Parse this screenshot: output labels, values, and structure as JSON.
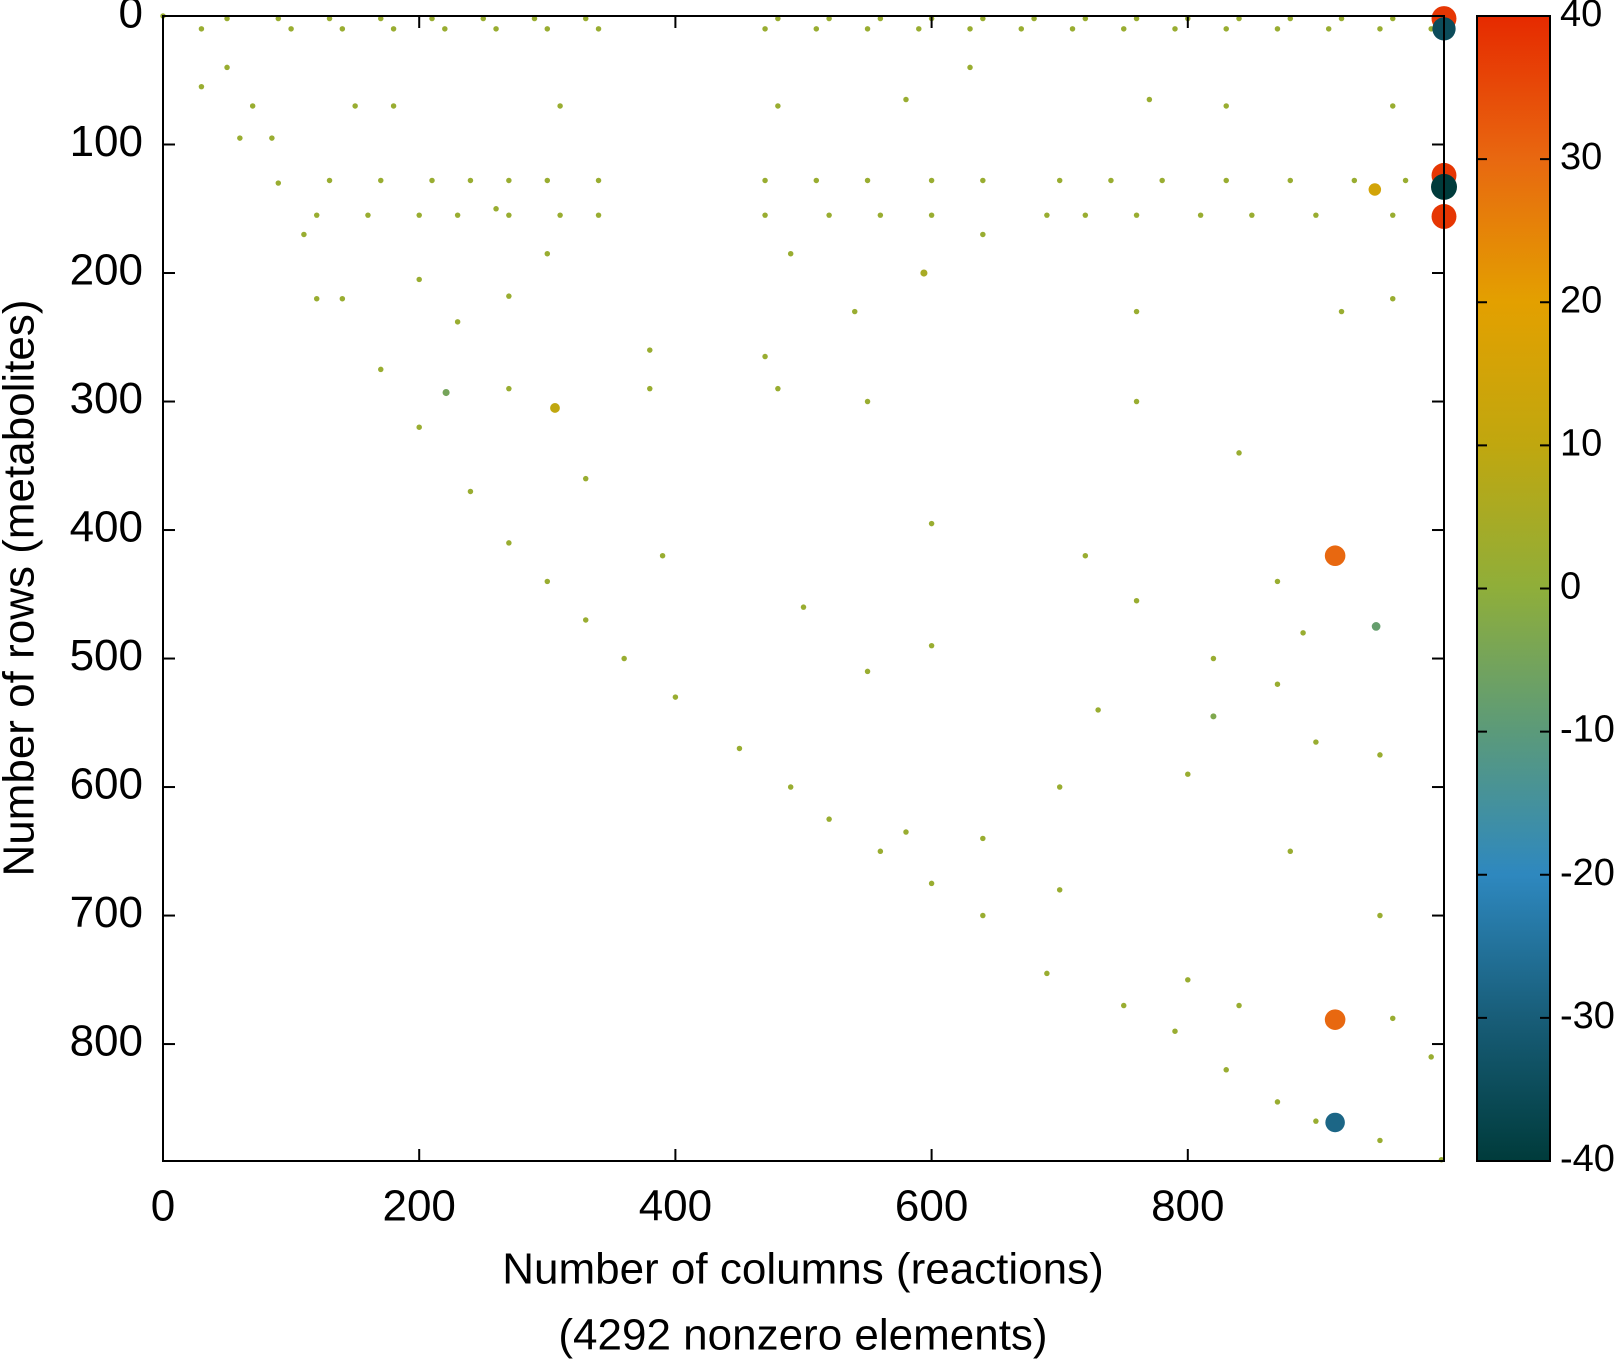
{
  "chart_data": {
    "type": "scatter",
    "xlabel": "Number of columns (reactions)",
    "subxlabel": "(4292 nonzero elements)",
    "ylabel": "Number of rows (metabolites)",
    "xlim": [
      0,
      1000
    ],
    "ylim": [
      891,
      0
    ],
    "xticks": [
      0,
      200,
      400,
      600,
      800
    ],
    "yticks": [
      0,
      100,
      200,
      300,
      400,
      500,
      600,
      700,
      800
    ],
    "clim": [
      -40,
      40
    ],
    "cticks": [
      -40,
      -30,
      -20,
      -10,
      0,
      10,
      20,
      30,
      40
    ],
    "colormap": [
      "#003b3b",
      "#185d78",
      "#2e88bf",
      "#5b9a7a",
      "#8fae3a",
      "#c0a70f",
      "#e3a000",
      "#e86810",
      "#e62a00"
    ],
    "x": [
      0,
      30,
      60,
      90,
      110,
      140,
      170,
      200,
      240,
      270,
      300,
      330,
      360,
      400,
      450,
      490,
      520,
      560,
      600,
      640,
      690,
      750,
      790,
      830,
      870,
      900,
      950,
      998,
      30,
      50,
      70,
      85,
      50,
      90,
      130,
      170,
      210,
      250,
      290,
      330,
      480,
      520,
      560,
      600,
      640,
      680,
      720,
      760,
      800,
      840,
      880,
      920,
      960,
      100,
      140,
      180,
      220,
      260,
      300,
      340,
      470,
      510,
      550,
      590,
      630,
      670,
      710,
      750,
      790,
      830,
      870,
      910,
      950,
      990,
      130,
      170,
      210,
      240,
      270,
      300,
      340,
      470,
      510,
      550,
      600,
      640,
      700,
      740,
      780,
      830,
      880,
      930,
      970,
      120,
      160,
      200,
      230,
      270,
      310,
      340,
      470,
      520,
      560,
      600,
      690,
      720,
      760,
      810,
      850,
      900,
      960,
      150,
      180,
      310,
      480,
      580,
      630,
      770,
      830,
      960,
      300,
      490,
      640,
      200,
      270,
      380,
      470,
      540,
      760,
      920,
      960,
      230,
      270,
      380,
      550,
      760,
      840,
      600,
      720,
      870,
      760,
      500,
      890,
      600,
      820,
      550,
      870,
      730,
      900,
      950,
      700,
      800,
      640,
      580,
      880,
      700,
      950,
      800,
      840,
      990,
      960,
      480,
      390,
      330,
      260,
      120,
      1000,
      1000,
      1000,
      1000,
      1000,
      915,
      915,
      915,
      946,
      947,
      221,
      306,
      594,
      820
    ],
    "y": [
      0,
      55,
      95,
      130,
      170,
      220,
      275,
      320,
      370,
      410,
      440,
      470,
      500,
      530,
      570,
      600,
      625,
      650,
      675,
      700,
      745,
      770,
      790,
      820,
      845,
      860,
      875,
      890,
      10,
      40,
      70,
      95,
      2,
      2,
      2,
      2,
      2,
      2,
      2,
      2,
      2,
      2,
      2,
      2,
      2,
      2,
      2,
      2,
      2,
      2,
      2,
      2,
      2,
      10,
      10,
      10,
      10,
      10,
      10,
      10,
      10,
      10,
      10,
      10,
      10,
      10,
      10,
      10,
      10,
      10,
      10,
      10,
      10,
      10,
      128,
      128,
      128,
      128,
      128,
      128,
      128,
      128,
      128,
      128,
      128,
      128,
      128,
      128,
      128,
      128,
      128,
      128,
      128,
      155,
      155,
      155,
      155,
      155,
      155,
      155,
      155,
      155,
      155,
      155,
      155,
      155,
      155,
      155,
      155,
      155,
      155,
      70,
      70,
      70,
      70,
      65,
      40,
      65,
      70,
      70,
      185,
      185,
      170,
      205,
      218,
      260,
      265,
      230,
      230,
      230,
      220,
      238,
      290,
      290,
      300,
      300,
      340,
      395,
      420,
      440,
      455,
      460,
      480,
      490,
      500,
      510,
      520,
      540,
      565,
      575,
      600,
      590,
      640,
      635,
      650,
      680,
      700,
      750,
      770,
      810,
      780,
      290,
      420,
      360,
      150,
      220,
      2,
      10,
      124,
      133,
      156,
      420,
      781,
      861,
      135,
      475,
      293,
      305,
      200,
      545
    ],
    "values": [
      2,
      2,
      2,
      2,
      2,
      2,
      2,
      2,
      2,
      2,
      2,
      2,
      2,
      2,
      2,
      2,
      2,
      2,
      2,
      2,
      2,
      2,
      2,
      2,
      2,
      2,
      2,
      2,
      2,
      2,
      2,
      2,
      2,
      2,
      2,
      2,
      2,
      2,
      2,
      2,
      2,
      2,
      2,
      2,
      2,
      2,
      2,
      2,
      2,
      2,
      2,
      2,
      2,
      2,
      2,
      2,
      2,
      2,
      2,
      2,
      2,
      2,
      2,
      2,
      2,
      2,
      2,
      2,
      2,
      2,
      2,
      2,
      2,
      2,
      2,
      2,
      2,
      2,
      2,
      2,
      2,
      2,
      2,
      2,
      2,
      2,
      2,
      2,
      2,
      2,
      2,
      2,
      2,
      2,
      2,
      2,
      2,
      2,
      2,
      2,
      2,
      2,
      2,
      2,
      2,
      2,
      2,
      2,
      2,
      2,
      2,
      2,
      2,
      2,
      2,
      2,
      2,
      2,
      2,
      2,
      2,
      2,
      2,
      2,
      2,
      2,
      2,
      2,
      2,
      2,
      2,
      2,
      2,
      2,
      2,
      2,
      2,
      2,
      2,
      2,
      2,
      2,
      2,
      2,
      2,
      2,
      2,
      2,
      2,
      2,
      2,
      2,
      2,
      2,
      2,
      2,
      2,
      2,
      2,
      2,
      2,
      2,
      2,
      2,
      2,
      2,
      38,
      -35,
      38,
      -40,
      38,
      30,
      30,
      -28,
      15,
      -8,
      -5,
      10,
      5,
      -3
    ]
  }
}
